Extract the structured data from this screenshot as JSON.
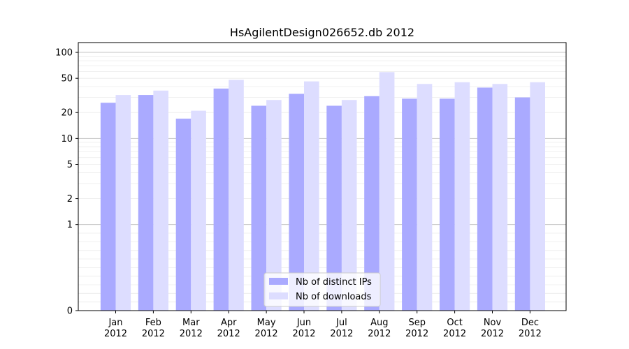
{
  "chart_data": {
    "type": "bar",
    "title": "HsAgilentDesign026652.db 2012",
    "scale": "symlog",
    "categories": [
      [
        "Jan",
        "2012"
      ],
      [
        "Feb",
        "2012"
      ],
      [
        "Mar",
        "2012"
      ],
      [
        "Apr",
        "2012"
      ],
      [
        "May",
        "2012"
      ],
      [
        "Jun",
        "2012"
      ],
      [
        "Jul",
        "2012"
      ],
      [
        "Aug",
        "2012"
      ],
      [
        "Sep",
        "2012"
      ],
      [
        "Oct",
        "2012"
      ],
      [
        "Nov",
        "2012"
      ],
      [
        "Dec",
        "2012"
      ]
    ],
    "series": [
      {
        "name": "Nb of distinct IPs",
        "color": "#aaaaff",
        "values": [
          26,
          32,
          17,
          38,
          24,
          33,
          24,
          31,
          29,
          29,
          39,
          30
        ]
      },
      {
        "name": "Nb of downloads",
        "color": "#ddddff",
        "values": [
          32,
          36,
          21,
          48,
          28,
          46,
          28,
          59,
          43,
          45,
          43,
          45
        ]
      }
    ],
    "yticks": [
      0,
      1,
      2,
      5,
      10,
      20,
      50,
      100
    ],
    "ylim": [
      0,
      130
    ],
    "legend_position": "lower center",
    "grid": true
  }
}
